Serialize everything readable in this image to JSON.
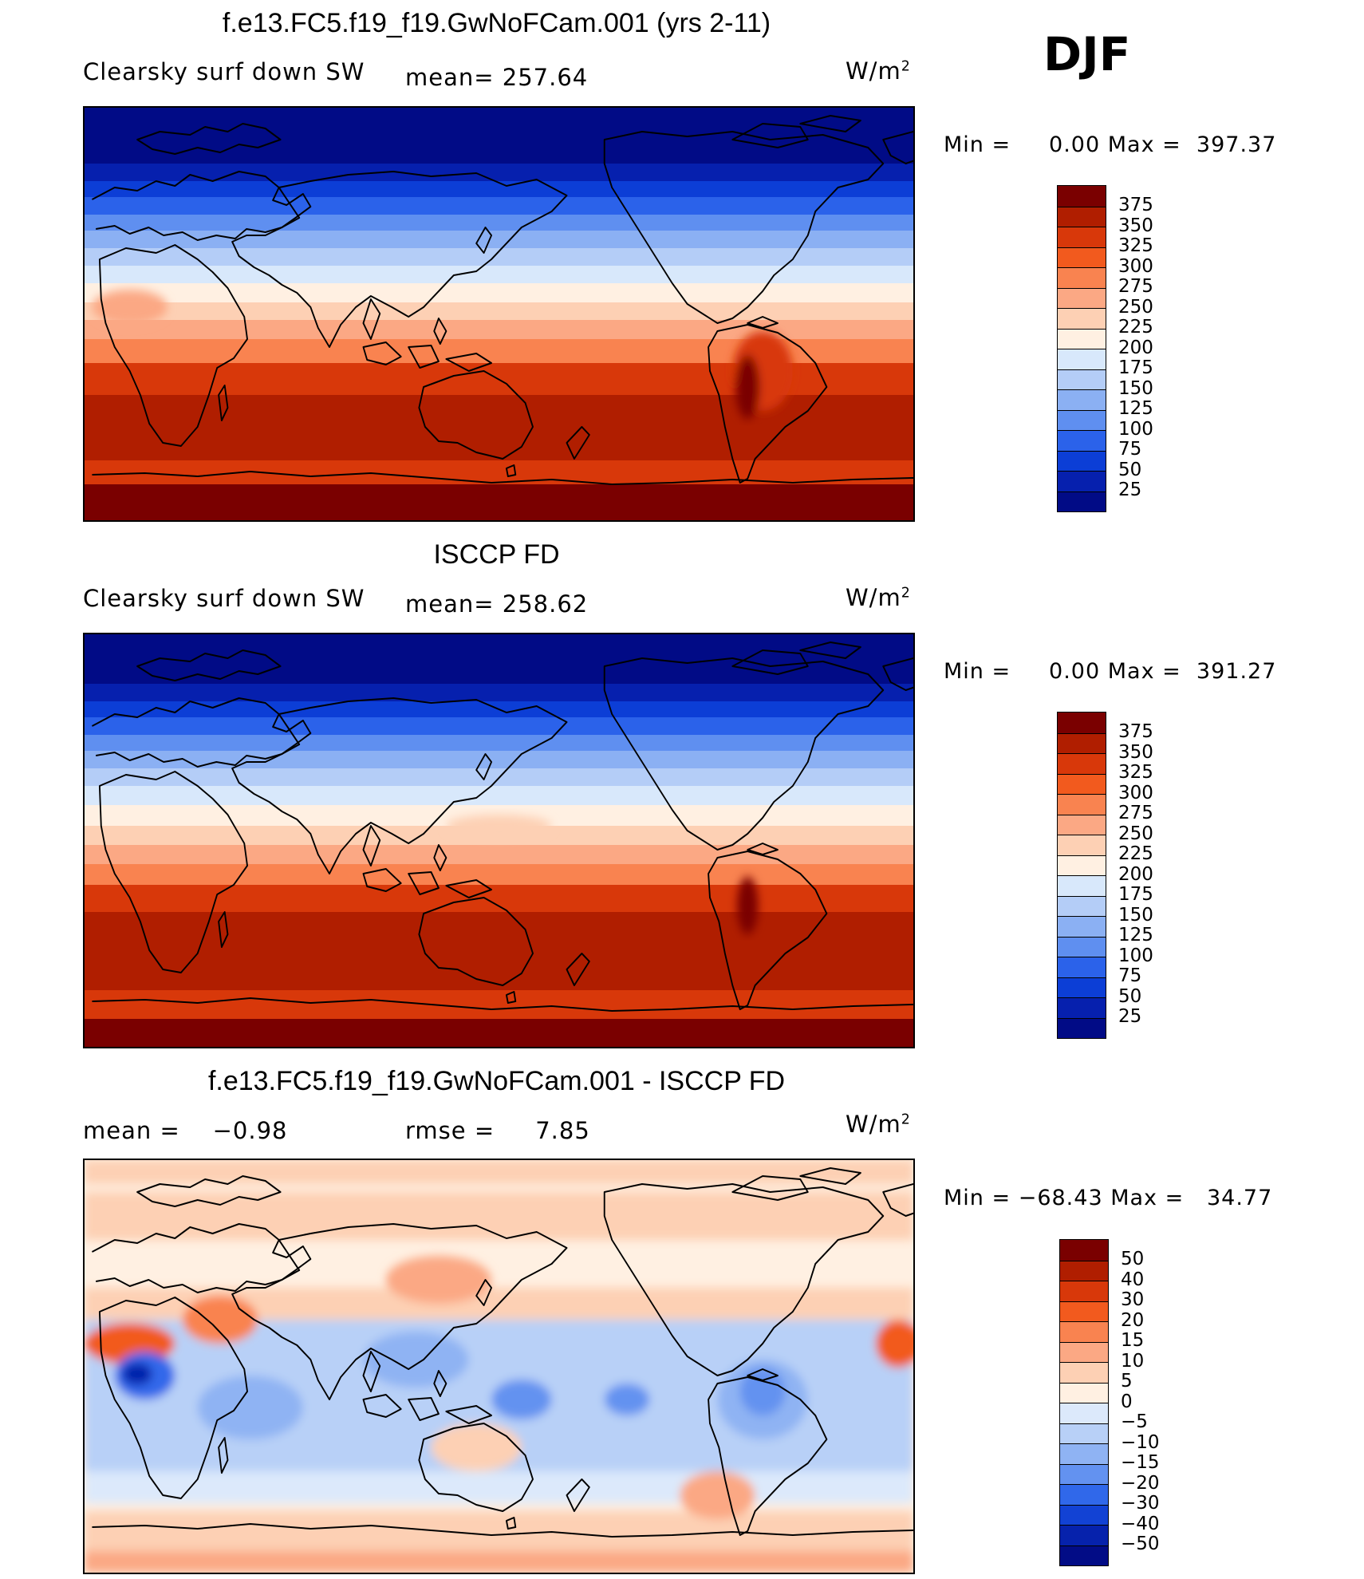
{
  "season": "DJF",
  "panels": [
    {
      "title": "f.e13.FC5.f19_f19.GwNoFCam.001 (yrs 2-11)",
      "left_label": "Clearsky surf down SW",
      "mid_label": "mean= 257.64",
      "units_base": "W/m",
      "units_exp": "2",
      "minmax": "Min =     0.00 Max =  397.37",
      "colorbar_labels": [
        "375",
        "350",
        "325",
        "300",
        "275",
        "250",
        "225",
        "200",
        "175",
        "150",
        "125",
        "100",
        "75",
        "50",
        "25"
      ],
      "colorbar_colors": [
        "#7a0000",
        "#b01e00",
        "#d8380a",
        "#f25a1e",
        "#f98350",
        "#fba884",
        "#fdd0b4",
        "#fff0e2",
        "#d8e8fb",
        "#b4cdf7",
        "#8bb0f3",
        "#5f8ff0",
        "#2b62ea",
        "#0c3ed6",
        "#0620ae",
        "#010b86"
      ]
    },
    {
      "title": "ISCCP FD",
      "left_label": "Clearsky surf down SW",
      "mid_label": "mean= 258.62",
      "units_base": "W/m",
      "units_exp": "2",
      "minmax": "Min =     0.00 Max =  391.27",
      "colorbar_labels": [
        "375",
        "350",
        "325",
        "300",
        "275",
        "250",
        "225",
        "200",
        "175",
        "150",
        "125",
        "100",
        "75",
        "50",
        "25"
      ],
      "colorbar_colors": [
        "#7a0000",
        "#b01e00",
        "#d8380a",
        "#f25a1e",
        "#f98350",
        "#fba884",
        "#fdd0b4",
        "#fff0e2",
        "#d8e8fb",
        "#b4cdf7",
        "#8bb0f3",
        "#5f8ff0",
        "#2b62ea",
        "#0c3ed6",
        "#0620ae",
        "#010b86"
      ]
    },
    {
      "title": "f.e13.FC5.f19_f19.GwNoFCam.001 - ISCCP FD",
      "left_label": "mean =    −0.98",
      "mid_label": "rmse =     7.85",
      "units_base": "W/m",
      "units_exp": "2",
      "minmax": "Min = −68.43 Max =   34.77",
      "colorbar_labels": [
        "50",
        "40",
        "30",
        "20",
        "15",
        "10",
        "5",
        "0",
        "−5",
        "−10",
        "−15",
        "−20",
        "−30",
        "−40",
        "−50"
      ],
      "colorbar_colors": [
        "#7a0000",
        "#b01e00",
        "#d8380a",
        "#f25a1e",
        "#f98350",
        "#fba884",
        "#fdd0b4",
        "#fff0e2",
        "#dce9fb",
        "#b8d0f7",
        "#8fb3f3",
        "#6392f0",
        "#3068ea",
        "#1242d4",
        "#0622ac",
        "#020c86"
      ]
    }
  ]
}
